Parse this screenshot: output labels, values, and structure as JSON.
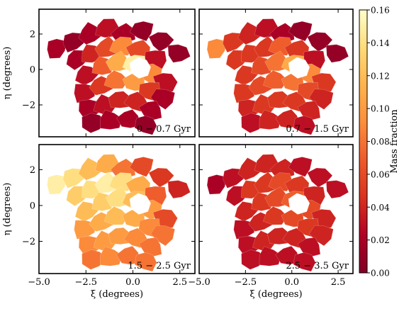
{
  "chart_data": {
    "type": "heatmap",
    "colormap": {
      "name": "YlOrRd_r",
      "stops": [
        "#800026",
        "#b00026",
        "#d7301f",
        "#ee5a2c",
        "#fc8d3c",
        "#feb24c",
        "#fed976",
        "#ffffcc"
      ]
    },
    "colorbar": {
      "label": "Mass fraction",
      "range": [
        0.0,
        0.16
      ],
      "ticks": [
        "0.00",
        "0.02",
        "0.04",
        "0.06",
        "0.08",
        "0.10",
        "0.12",
        "0.14",
        "0.16"
      ]
    },
    "xlabel": "ξ (degrees)",
    "ylabel": "η (degrees)",
    "xlim": [
      -5.0,
      3.3
    ],
    "ylim": [
      -3.8,
      3.4
    ],
    "xticks": [
      -5.0,
      -2.5,
      0.0,
      2.5
    ],
    "xtick_labels": [
      "−5.0",
      "−2.5",
      "0.0",
      "2.5"
    ],
    "yticks": [
      -2,
      0,
      2
    ],
    "ytick_labels": [
      "−2",
      "0",
      "2"
    ],
    "panels": [
      {
        "label": "0 − 0.7 Gyr",
        "cells": [
          {
            "x": -4.1,
            "y": 1.2,
            "v": 0.02
          },
          {
            "x": -3.2,
            "y": 1.6,
            "v": 0.01
          },
          {
            "x": -2.3,
            "y": 2.0,
            "v": 0.02
          },
          {
            "x": -1.4,
            "y": 2.3,
            "v": 0.03
          },
          {
            "x": -0.5,
            "y": 2.0,
            "v": 0.02
          },
          {
            "x": 0.5,
            "y": 2.2,
            "v": 0.01
          },
          {
            "x": 1.5,
            "y": 1.6,
            "v": 0.01
          },
          {
            "x": 2.4,
            "y": 0.9,
            "v": 0.01
          },
          {
            "x": -3.0,
            "y": 0.6,
            "v": 0.02
          },
          {
            "x": -2.2,
            "y": 0.9,
            "v": 0.04
          },
          {
            "x": -1.4,
            "y": 1.2,
            "v": 0.06
          },
          {
            "x": -0.6,
            "y": 1.3,
            "v": 0.09
          },
          {
            "x": 0.3,
            "y": 1.1,
            "v": 0.06
          },
          {
            "x": 1.2,
            "y": 0.6,
            "v": 0.03
          },
          {
            "x": -2.5,
            "y": -0.3,
            "v": 0.03
          },
          {
            "x": -1.6,
            "y": 0.2,
            "v": 0.07
          },
          {
            "x": -0.8,
            "y": 0.4,
            "v": 0.11
          },
          {
            "x": 0.1,
            "y": 0.3,
            "v": 0.15
          },
          {
            "x": 0.9,
            "y": -0.2,
            "v": 0.09
          },
          {
            "x": 1.7,
            "y": -0.7,
            "v": 0.03
          },
          {
            "x": -2.6,
            "y": -1.3,
            "v": 0.03
          },
          {
            "x": -1.7,
            "y": -0.9,
            "v": 0.05
          },
          {
            "x": -0.9,
            "y": -0.6,
            "v": 0.08
          },
          {
            "x": 0.1,
            "y": -0.7,
            "v": 0.1
          },
          {
            "x": 0.9,
            "y": -1.2,
            "v": 0.05
          },
          {
            "x": 1.6,
            "y": -1.6,
            "v": 0.02
          },
          {
            "x": -2.3,
            "y": -2.2,
            "v": 0.02
          },
          {
            "x": -1.5,
            "y": -2.0,
            "v": 0.03
          },
          {
            "x": -0.7,
            "y": -1.7,
            "v": 0.04
          },
          {
            "x": 0.2,
            "y": -1.8,
            "v": 0.04
          },
          {
            "x": 1.0,
            "y": -2.3,
            "v": 0.02
          },
          {
            "x": -2.1,
            "y": -3.0,
            "v": 0.01
          },
          {
            "x": -1.2,
            "y": -2.9,
            "v": 0.02
          },
          {
            "x": -0.2,
            "y": -2.8,
            "v": 0.02
          },
          {
            "x": 0.7,
            "y": -3.1,
            "v": 0.01
          }
        ]
      },
      {
        "label": "0.7 − 1.5 Gyr",
        "cells": [
          {
            "x": -4.1,
            "y": 1.2,
            "v": 0.09
          },
          {
            "x": -3.2,
            "y": 1.6,
            "v": 0.05
          },
          {
            "x": -2.3,
            "y": 2.0,
            "v": 0.04
          },
          {
            "x": -1.4,
            "y": 2.3,
            "v": 0.03
          },
          {
            "x": -0.5,
            "y": 2.0,
            "v": 0.02
          },
          {
            "x": 0.5,
            "y": 2.2,
            "v": 0.01
          },
          {
            "x": 1.5,
            "y": 1.6,
            "v": 0.01
          },
          {
            "x": 2.4,
            "y": 0.9,
            "v": 0.01
          },
          {
            "x": -3.0,
            "y": 0.6,
            "v": 0.05
          },
          {
            "x": -2.2,
            "y": 0.9,
            "v": 0.05
          },
          {
            "x": -1.4,
            "y": 1.2,
            "v": 0.05
          },
          {
            "x": -0.6,
            "y": 1.3,
            "v": 0.07
          },
          {
            "x": 0.3,
            "y": 1.1,
            "v": 0.05
          },
          {
            "x": 1.2,
            "y": 0.6,
            "v": 0.03
          },
          {
            "x": -2.5,
            "y": -0.3,
            "v": 0.05
          },
          {
            "x": -1.6,
            "y": 0.2,
            "v": 0.06
          },
          {
            "x": -0.8,
            "y": 0.4,
            "v": 0.08
          },
          {
            "x": 0.1,
            "y": 0.3,
            "v": 0.11
          },
          {
            "x": 0.9,
            "y": -0.2,
            "v": 0.09
          },
          {
            "x": 1.7,
            "y": -0.7,
            "v": 0.05
          },
          {
            "x": -2.6,
            "y": -1.3,
            "v": 0.05
          },
          {
            "x": -1.7,
            "y": -0.9,
            "v": 0.06
          },
          {
            "x": -0.9,
            "y": -0.6,
            "v": 0.07
          },
          {
            "x": 0.1,
            "y": -0.7,
            "v": 0.08
          },
          {
            "x": 0.9,
            "y": -1.2,
            "v": 0.06
          },
          {
            "x": 1.6,
            "y": -1.6,
            "v": 0.04
          },
          {
            "x": -2.3,
            "y": -2.2,
            "v": 0.04
          },
          {
            "x": -1.5,
            "y": -2.0,
            "v": 0.05
          },
          {
            "x": -0.7,
            "y": -1.7,
            "v": 0.05
          },
          {
            "x": 0.2,
            "y": -1.8,
            "v": 0.05
          },
          {
            "x": 1.0,
            "y": -2.3,
            "v": 0.04
          },
          {
            "x": -2.1,
            "y": -3.0,
            "v": 0.03
          },
          {
            "x": -1.2,
            "y": -2.9,
            "v": 0.04
          },
          {
            "x": -0.2,
            "y": -2.8,
            "v": 0.04
          },
          {
            "x": 0.7,
            "y": -3.1,
            "v": 0.03
          }
        ]
      },
      {
        "label": "1.5 − 2.5 Gyr",
        "cells": [
          {
            "x": -4.1,
            "y": 1.2,
            "v": 0.15
          },
          {
            "x": -3.2,
            "y": 1.6,
            "v": 0.14
          },
          {
            "x": -2.3,
            "y": 2.0,
            "v": 0.12
          },
          {
            "x": -1.4,
            "y": 2.3,
            "v": 0.11
          },
          {
            "x": -0.5,
            "y": 2.0,
            "v": 0.08
          },
          {
            "x": 0.5,
            "y": 2.2,
            "v": 0.06
          },
          {
            "x": 1.5,
            "y": 1.6,
            "v": 0.05
          },
          {
            "x": 2.4,
            "y": 0.9,
            "v": 0.04
          },
          {
            "x": -3.0,
            "y": 0.6,
            "v": 0.13
          },
          {
            "x": -2.2,
            "y": 0.9,
            "v": 0.14
          },
          {
            "x": -1.4,
            "y": 1.2,
            "v": 0.15
          },
          {
            "x": -0.6,
            "y": 1.3,
            "v": 0.14
          },
          {
            "x": 0.3,
            "y": 1.1,
            "v": 0.11
          },
          {
            "x": 1.2,
            "y": 0.6,
            "v": 0.07
          },
          {
            "x": -2.5,
            "y": -0.3,
            "v": 0.12
          },
          {
            "x": -1.6,
            "y": 0.2,
            "v": 0.13
          },
          {
            "x": -0.8,
            "y": 0.4,
            "v": 0.14
          },
          {
            "x": 0.1,
            "y": 0.3,
            "v": 0.12
          },
          {
            "x": 0.9,
            "y": -0.2,
            "v": 0.1
          },
          {
            "x": 1.7,
            "y": -0.7,
            "v": 0.06
          },
          {
            "x": -2.6,
            "y": -1.3,
            "v": 0.1
          },
          {
            "x": -1.7,
            "y": -0.9,
            "v": 0.11
          },
          {
            "x": -0.9,
            "y": -0.6,
            "v": 0.12
          },
          {
            "x": 0.1,
            "y": -0.7,
            "v": 0.11
          },
          {
            "x": 0.9,
            "y": -1.2,
            "v": 0.09
          },
          {
            "x": 1.6,
            "y": -1.6,
            "v": 0.08
          },
          {
            "x": -2.3,
            "y": -2.2,
            "v": 0.09
          },
          {
            "x": -1.5,
            "y": -2.0,
            "v": 0.1
          },
          {
            "x": -0.7,
            "y": -1.7,
            "v": 0.1
          },
          {
            "x": 0.2,
            "y": -1.8,
            "v": 0.09
          },
          {
            "x": 1.0,
            "y": -2.3,
            "v": 0.08
          },
          {
            "x": -2.1,
            "y": -3.0,
            "v": 0.08
          },
          {
            "x": -1.2,
            "y": -2.9,
            "v": 0.09
          },
          {
            "x": -0.2,
            "y": -2.8,
            "v": 0.08
          },
          {
            "x": 0.7,
            "y": -3.1,
            "v": 0.08
          }
        ]
      },
      {
        "label": "2.5 − 3.5 Gyr",
        "cells": [
          {
            "x": -4.1,
            "y": 1.2,
            "v": 0.02
          },
          {
            "x": -3.2,
            "y": 1.6,
            "v": 0.03
          },
          {
            "x": -2.3,
            "y": 2.0,
            "v": 0.04
          },
          {
            "x": -1.4,
            "y": 2.3,
            "v": 0.04
          },
          {
            "x": -0.5,
            "y": 2.0,
            "v": 0.04
          },
          {
            "x": 0.5,
            "y": 2.2,
            "v": 0.03
          },
          {
            "x": 1.5,
            "y": 1.6,
            "v": 0.03
          },
          {
            "x": 2.4,
            "y": 0.9,
            "v": 0.03
          },
          {
            "x": -3.0,
            "y": 0.6,
            "v": 0.03
          },
          {
            "x": -2.2,
            "y": 0.9,
            "v": 0.05
          },
          {
            "x": -1.4,
            "y": 1.2,
            "v": 0.05
          },
          {
            "x": -0.6,
            "y": 1.3,
            "v": 0.06
          },
          {
            "x": 0.3,
            "y": 1.1,
            "v": 0.05
          },
          {
            "x": 1.2,
            "y": 0.6,
            "v": 0.04
          },
          {
            "x": -2.5,
            "y": -0.3,
            "v": 0.04
          },
          {
            "x": -1.6,
            "y": 0.2,
            "v": 0.05
          },
          {
            "x": -0.8,
            "y": 0.4,
            "v": 0.06
          },
          {
            "x": 0.1,
            "y": 0.3,
            "v": 0.07
          },
          {
            "x": 0.9,
            "y": -0.2,
            "v": 0.06
          },
          {
            "x": 1.7,
            "y": -0.7,
            "v": 0.04
          },
          {
            "x": -2.6,
            "y": -1.3,
            "v": 0.03
          },
          {
            "x": -1.7,
            "y": -0.9,
            "v": 0.04
          },
          {
            "x": -0.9,
            "y": -0.6,
            "v": 0.05
          },
          {
            "x": 0.1,
            "y": -0.7,
            "v": 0.06
          },
          {
            "x": 0.9,
            "y": -1.2,
            "v": 0.05
          },
          {
            "x": 1.6,
            "y": -1.6,
            "v": 0.04
          },
          {
            "x": -2.3,
            "y": -2.2,
            "v": 0.03
          },
          {
            "x": -1.5,
            "y": -2.0,
            "v": 0.04
          },
          {
            "x": -0.7,
            "y": -1.7,
            "v": 0.04
          },
          {
            "x": 0.2,
            "y": -1.8,
            "v": 0.04
          },
          {
            "x": 1.0,
            "y": -2.3,
            "v": 0.03
          },
          {
            "x": -2.1,
            "y": -3.0,
            "v": 0.03
          },
          {
            "x": -1.2,
            "y": -2.9,
            "v": 0.03
          },
          {
            "x": -0.2,
            "y": -2.8,
            "v": 0.03
          },
          {
            "x": 0.7,
            "y": -3.1,
            "v": 0.03
          }
        ]
      }
    ]
  }
}
